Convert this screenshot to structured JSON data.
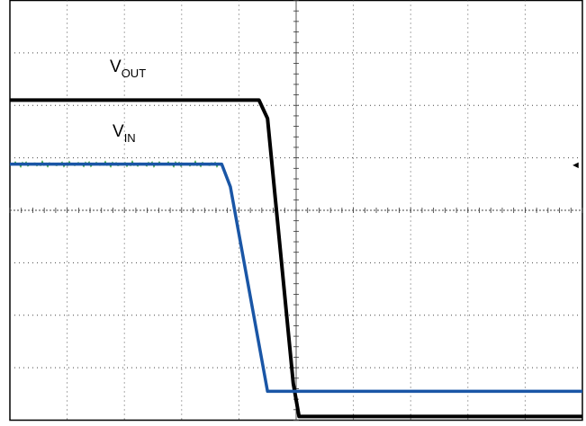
{
  "chart_data": {
    "type": "line",
    "grid": true,
    "divisions": {
      "x": 10,
      "y": 8
    },
    "xlim": [
      0,
      10
    ],
    "ylim": [
      0,
      8
    ],
    "title": "",
    "xlabel": "",
    "ylabel": "",
    "series": [
      {
        "name": "VOUT",
        "label_main": "V",
        "label_sub": "OUT",
        "color": "#000000",
        "points": [
          [
            0,
            6.1
          ],
          [
            4.35,
            6.1
          ],
          [
            4.5,
            5.75
          ],
          [
            4.95,
            0.7
          ],
          [
            5.05,
            0.07
          ],
          [
            10,
            0.07
          ]
        ]
      },
      {
        "name": "VIN",
        "label_main": "V",
        "label_sub": "IN",
        "color": "#1a56a6",
        "noise_color": "#3aa040",
        "points": [
          [
            0,
            4.88
          ],
          [
            3.7,
            4.88
          ],
          [
            3.85,
            4.45
          ],
          [
            4.5,
            0.55
          ],
          [
            10,
            0.55
          ]
        ]
      }
    ],
    "trigger_marker": "◄"
  }
}
